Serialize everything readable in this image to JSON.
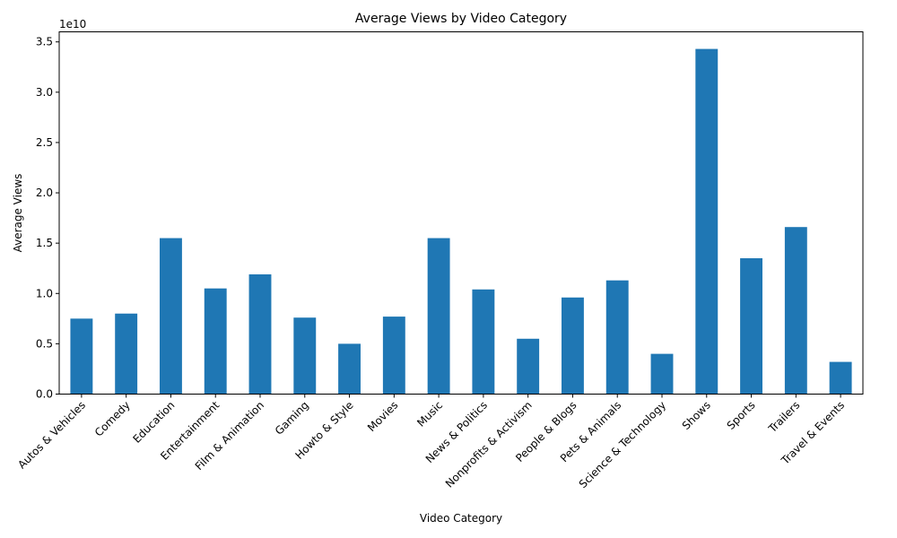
{
  "chart_data": {
    "type": "bar",
    "title": "Average Views by Video Category",
    "xlabel": "Video Category",
    "ylabel": "Average Views",
    "offset_text": "1e10",
    "color": "#1f77b4",
    "ylim": [
      0,
      36000000000
    ],
    "yticks": [
      0,
      5000000000,
      10000000000,
      15000000000,
      20000000000,
      25000000000,
      30000000000,
      35000000000
    ],
    "ytick_labels": [
      "0.0",
      "0.5",
      "1.0",
      "1.5",
      "2.0",
      "2.5",
      "3.0",
      "3.5"
    ],
    "categories": [
      "Autos & Vehicles",
      "Comedy",
      "Education",
      "Entertainment",
      "Film & Animation",
      "Gaming",
      "Howto & Style",
      "Movies",
      "Music",
      "News & Politics",
      "Nonprofits & Activism",
      "People & Blogs",
      "Pets & Animals",
      "Science & Technology",
      "Shows",
      "Sports",
      "Trailers",
      "Travel & Events"
    ],
    "values": [
      7500000000,
      8000000000,
      15500000000,
      10500000000,
      11900000000,
      7600000000,
      5000000000,
      7700000000,
      15500000000,
      10400000000,
      5500000000,
      9600000000,
      11300000000,
      4000000000,
      34300000000,
      13500000000,
      16600000000,
      3200000000
    ],
    "grid": false,
    "legend": false
  }
}
